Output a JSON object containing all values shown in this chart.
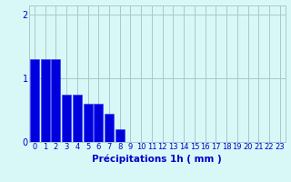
{
  "categories": [
    0,
    1,
    2,
    3,
    4,
    5,
    6,
    7,
    8,
    9,
    10,
    11,
    12,
    13,
    14,
    15,
    16,
    17,
    18,
    19,
    20,
    21,
    22,
    23
  ],
  "values": [
    1.3,
    1.3,
    1.3,
    0.75,
    0.75,
    0.6,
    0.6,
    0.45,
    0.2,
    0,
    0,
    0,
    0,
    0,
    0,
    0,
    0,
    0,
    0,
    0,
    0,
    0,
    0,
    0
  ],
  "bar_color": "#0000dd",
  "bar_edge_color": "#3333ff",
  "background_color": "#d8f8f8",
  "grid_color": "#aac8c8",
  "axis_label_color": "#0000cc",
  "ylabel_ticks": [
    0,
    1,
    2
  ],
  "ylim": [
    0,
    2.15
  ],
  "xlim_left": -0.5,
  "xlim_right": 23.5,
  "xlabel": "Précipitations 1h ( mm )",
  "xlabel_fontsize": 7.5,
  "tick_fontsize": 6,
  "ylabel_fontsize": 7
}
